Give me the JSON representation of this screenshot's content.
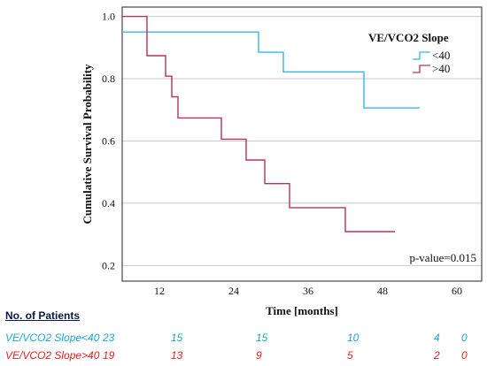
{
  "chart_data": {
    "type": "line",
    "step": true,
    "xlabel": "Time [months]",
    "ylabel": "Cumulative Survival Probability",
    "xticks": [
      12,
      24,
      36,
      48,
      60
    ],
    "yticks": [
      "0.2",
      "0.4",
      "0.6",
      "0.8",
      "1.0"
    ],
    "xlim": [
      6,
      64
    ],
    "ylim": [
      0.15,
      1.03
    ],
    "grid": "horizontal",
    "legend": {
      "title": "VE/VCO2 Slope",
      "position": "top-right",
      "entries": [
        "<40",
        ">40"
      ]
    },
    "annotation": "p-value=0.015",
    "series": [
      {
        "name": "<40",
        "color": "#36b7e6",
        "x": [
          6,
          28,
          28,
          32,
          32,
          45,
          45,
          54
        ],
        "y": [
          0.95,
          0.95,
          0.885,
          0.885,
          0.822,
          0.822,
          0.706,
          0.706
        ]
      },
      {
        "name": ">40",
        "color": "#b5345a",
        "x": [
          6,
          10,
          10,
          13,
          13,
          14,
          14,
          15,
          15,
          16,
          16,
          22,
          22,
          26,
          26,
          29,
          29,
          33,
          33,
          42,
          42,
          50
        ],
        "y": [
          1.0,
          1.0,
          0.874,
          0.874,
          0.808,
          0.808,
          0.742,
          0.742,
          0.674,
          0.674,
          0.674,
          0.674,
          0.606,
          0.606,
          0.539,
          0.539,
          0.463,
          0.463,
          0.386,
          0.386,
          0.309,
          0.309
        ]
      }
    ]
  },
  "risk_table": {
    "title": "No. of Patients",
    "rows": [
      {
        "label": "VE/VCO2 Slope<40",
        "color": "#1aa7dc",
        "counts": [
          "23",
          "15",
          "15",
          "10",
          "4",
          "0"
        ]
      },
      {
        "label": "VE/VCO2 Slope>40",
        "color": "#e41e1e",
        "counts": [
          "19",
          "13",
          "9",
          "5",
          "2",
          "0"
        ]
      }
    ]
  }
}
